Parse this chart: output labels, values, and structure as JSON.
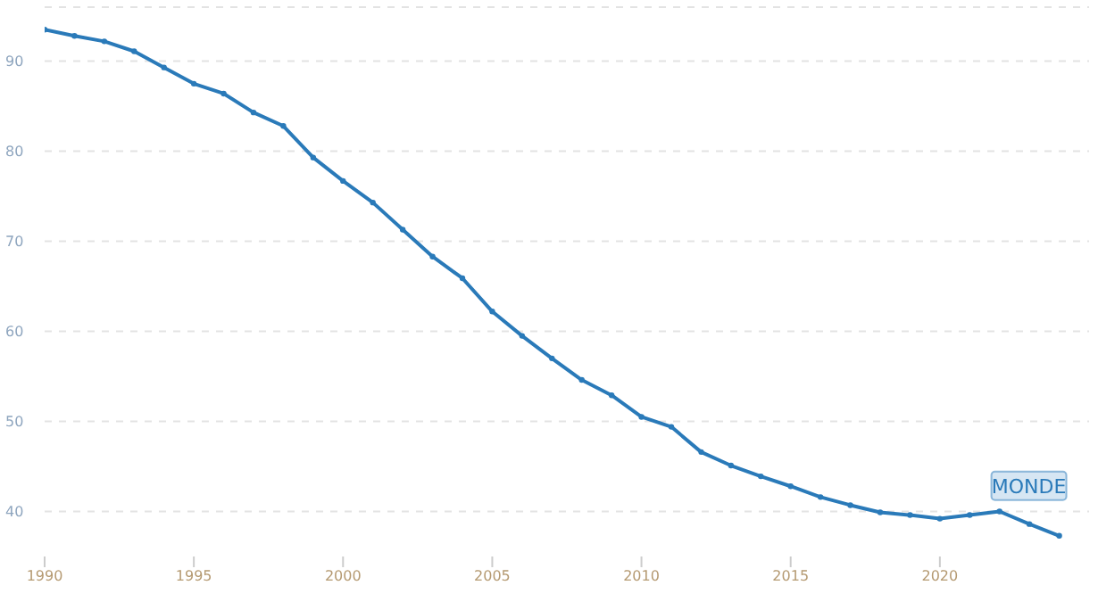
{
  "chart_data": {
    "type": "line",
    "x": [
      1990,
      1991,
      1992,
      1993,
      1994,
      1995,
      1996,
      1997,
      1998,
      1999,
      2000,
      2001,
      2002,
      2003,
      2004,
      2005,
      2006,
      2007,
      2008,
      2009,
      2010,
      2011,
      2012,
      2013,
      2014,
      2015,
      2016,
      2017,
      2018,
      2019,
      2020,
      2021,
      2022,
      2023,
      2024
    ],
    "series": [
      {
        "name": "MONDE",
        "color": "#2a7ab9",
        "values": [
          93.5,
          92.8,
          92.2,
          91.1,
          89.3,
          87.5,
          86.4,
          84.3,
          82.8,
          79.3,
          76.7,
          74.3,
          71.3,
          68.3,
          65.9,
          62.2,
          59.5,
          57.0,
          54.6,
          52.9,
          50.5,
          49.4,
          46.6,
          45.1,
          43.9,
          42.8,
          41.6,
          40.7,
          39.9,
          39.6,
          39.2,
          39.6,
          40.0,
          38.6,
          37.3
        ]
      }
    ],
    "xlim": [
      1990,
      2025
    ],
    "xticks": [
      1990,
      1995,
      2000,
      2005,
      2010,
      2015,
      2020
    ],
    "ylim": [
      35,
      96
    ],
    "yticks": [
      40,
      50,
      60,
      70,
      80,
      90
    ],
    "grid": "y",
    "marker": "circle",
    "line_style": "solid"
  }
}
